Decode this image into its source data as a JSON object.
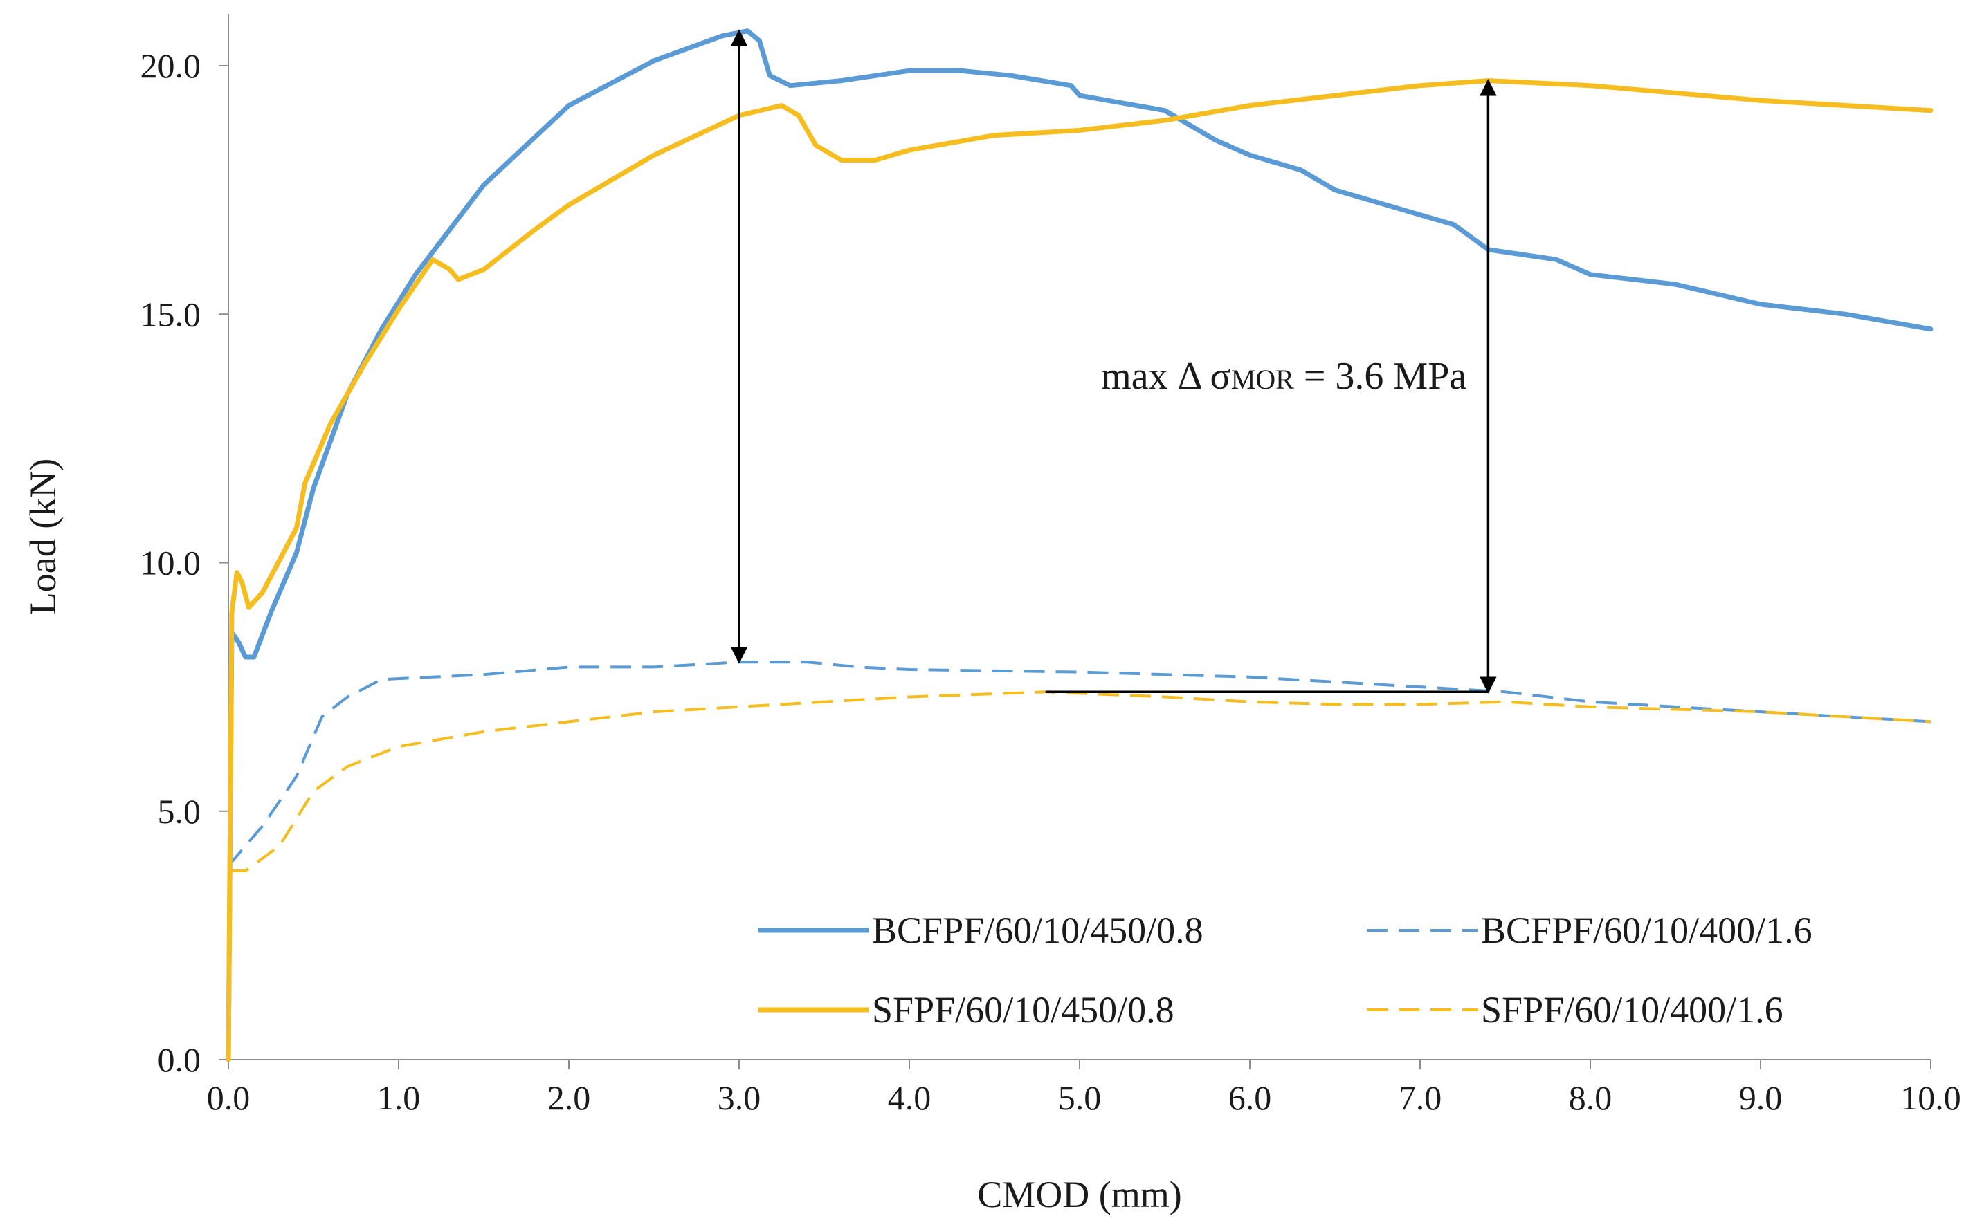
{
  "chart_data": {
    "type": "line",
    "title": "",
    "xlabel": "CMOD (mm)",
    "ylabel": "Load (kN)",
    "xlim": [
      0,
      10
    ],
    "ylim": [
      0,
      21
    ],
    "x_ticks": [
      "0.0",
      "1.0",
      "2.0",
      "3.0",
      "4.0",
      "5.0",
      "6.0",
      "7.0",
      "8.0",
      "9.0",
      "10.0"
    ],
    "y_ticks": [
      "0.0",
      "5.0",
      "10.0",
      "15.0",
      "20.0"
    ],
    "grid": false,
    "legend_position": "bottom-right",
    "series": [
      {
        "name": "BCFPF/60/10/450/0.8",
        "color": "#5b9bd5",
        "style": "solid",
        "points": [
          [
            0,
            0
          ],
          [
            0.02,
            8.6
          ],
          [
            0.06,
            8.4
          ],
          [
            0.1,
            8.1
          ],
          [
            0.15,
            8.1
          ],
          [
            0.25,
            9.0
          ],
          [
            0.4,
            10.2
          ],
          [
            0.5,
            11.5
          ],
          [
            0.7,
            13.4
          ],
          [
            0.9,
            14.7
          ],
          [
            1.1,
            15.8
          ],
          [
            1.5,
            17.6
          ],
          [
            2.0,
            19.2
          ],
          [
            2.5,
            20.1
          ],
          [
            2.9,
            20.6
          ],
          [
            3.05,
            20.7
          ],
          [
            3.12,
            20.5
          ],
          [
            3.18,
            19.8
          ],
          [
            3.3,
            19.6
          ],
          [
            3.6,
            19.7
          ],
          [
            4.0,
            19.9
          ],
          [
            4.3,
            19.9
          ],
          [
            4.6,
            19.8
          ],
          [
            4.95,
            19.6
          ],
          [
            5.0,
            19.4
          ],
          [
            5.5,
            19.1
          ],
          [
            5.8,
            18.5
          ],
          [
            6.0,
            18.2
          ],
          [
            6.3,
            17.9
          ],
          [
            6.5,
            17.5
          ],
          [
            6.8,
            17.2
          ],
          [
            7.2,
            16.8
          ],
          [
            7.4,
            16.3
          ],
          [
            7.8,
            16.1
          ],
          [
            8.0,
            15.8
          ],
          [
            8.5,
            15.6
          ],
          [
            9.0,
            15.2
          ],
          [
            9.5,
            15.0
          ],
          [
            10.0,
            14.7
          ]
        ]
      },
      {
        "name": "BCFPF/60/10/400/1.6",
        "color": "#5b9bd5",
        "style": "dashed",
        "points": [
          [
            0,
            3.9
          ],
          [
            0.2,
            4.7
          ],
          [
            0.4,
            5.7
          ],
          [
            0.55,
            6.9
          ],
          [
            0.7,
            7.3
          ],
          [
            0.9,
            7.65
          ],
          [
            1.2,
            7.7
          ],
          [
            1.5,
            7.75
          ],
          [
            2.0,
            7.9
          ],
          [
            2.5,
            7.9
          ],
          [
            3.0,
            8.0
          ],
          [
            3.4,
            8.0
          ],
          [
            3.7,
            7.9
          ],
          [
            4.0,
            7.85
          ],
          [
            5.0,
            7.8
          ],
          [
            6.0,
            7.7
          ],
          [
            7.0,
            7.5
          ],
          [
            7.5,
            7.4
          ],
          [
            8.0,
            7.2
          ],
          [
            9.0,
            7.0
          ],
          [
            10.0,
            6.8
          ]
        ]
      },
      {
        "name": "SFPF/60/10/450/0.8",
        "color": "#f5bd1f",
        "style": "solid",
        "points": [
          [
            0,
            0
          ],
          [
            0.02,
            9.0
          ],
          [
            0.05,
            9.8
          ],
          [
            0.08,
            9.6
          ],
          [
            0.12,
            9.1
          ],
          [
            0.2,
            9.4
          ],
          [
            0.4,
            10.7
          ],
          [
            0.45,
            11.6
          ],
          [
            0.6,
            12.8
          ],
          [
            0.8,
            14.0
          ],
          [
            1.0,
            15.1
          ],
          [
            1.2,
            16.1
          ],
          [
            1.3,
            15.9
          ],
          [
            1.35,
            15.7
          ],
          [
            1.5,
            15.9
          ],
          [
            1.8,
            16.7
          ],
          [
            2.0,
            17.2
          ],
          [
            2.5,
            18.2
          ],
          [
            3.0,
            19.0
          ],
          [
            3.25,
            19.2
          ],
          [
            3.35,
            19.0
          ],
          [
            3.45,
            18.4
          ],
          [
            3.6,
            18.1
          ],
          [
            3.8,
            18.1
          ],
          [
            4.0,
            18.3
          ],
          [
            4.5,
            18.6
          ],
          [
            5.0,
            18.7
          ],
          [
            5.5,
            18.9
          ],
          [
            6.0,
            19.2
          ],
          [
            6.5,
            19.4
          ],
          [
            7.0,
            19.6
          ],
          [
            7.4,
            19.7
          ],
          [
            8.0,
            19.6
          ],
          [
            9.0,
            19.3
          ],
          [
            10.0,
            19.1
          ]
        ]
      },
      {
        "name": "SFPF/60/10/400/1.6",
        "color": "#f5bd1f",
        "style": "dashed",
        "points": [
          [
            0,
            3.8
          ],
          [
            0.1,
            3.8
          ],
          [
            0.3,
            4.3
          ],
          [
            0.5,
            5.4
          ],
          [
            0.7,
            5.9
          ],
          [
            1.0,
            6.3
          ],
          [
            1.5,
            6.6
          ],
          [
            2.0,
            6.8
          ],
          [
            2.5,
            7.0
          ],
          [
            3.0,
            7.1
          ],
          [
            4.0,
            7.3
          ],
          [
            4.8,
            7.4
          ],
          [
            5.5,
            7.3
          ],
          [
            6.0,
            7.2
          ],
          [
            6.5,
            7.15
          ],
          [
            7.0,
            7.15
          ],
          [
            7.5,
            7.2
          ],
          [
            8.0,
            7.1
          ],
          [
            9.0,
            7.0
          ],
          [
            10.0,
            6.8
          ]
        ]
      }
    ],
    "annotations": [
      {
        "type": "double-arrow",
        "x": 3.0,
        "from": 8.0,
        "to": 20.7
      },
      {
        "type": "double-arrow",
        "x": 7.4,
        "from": 7.4,
        "to": 19.7
      },
      {
        "type": "line",
        "x": [
          4.8,
          7.4
        ],
        "y": [
          7.4,
          7.4
        ]
      },
      {
        "type": "text",
        "prefix": "max Δ σ",
        "subscript": "MOR",
        "suffix": " = 3.6 MPa",
        "x": 6.2,
        "y": 13.5
      }
    ]
  }
}
